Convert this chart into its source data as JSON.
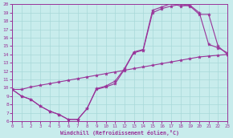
{
  "xlabel": "Windchill (Refroidissement éolien,°C)",
  "xlim": [
    0,
    23
  ],
  "ylim": [
    6,
    20
  ],
  "xticks": [
    0,
    1,
    2,
    3,
    4,
    5,
    6,
    7,
    8,
    9,
    10,
    11,
    12,
    13,
    14,
    15,
    16,
    17,
    18,
    19,
    20,
    21,
    22,
    23
  ],
  "yticks": [
    6,
    7,
    8,
    9,
    10,
    11,
    12,
    13,
    14,
    15,
    16,
    17,
    18,
    19,
    20
  ],
  "bg_color": "#c8ecec",
  "grid_color": "#a8d8d8",
  "line_color": "#993399",
  "curve1_x": [
    0,
    1,
    2,
    3,
    4,
    5,
    6,
    7,
    8,
    9,
    10,
    11,
    12,
    13,
    14,
    15,
    16,
    17,
    18,
    19,
    20,
    21,
    22,
    23
  ],
  "curve1_y": [
    9.8,
    9.0,
    8.6,
    7.8,
    7.2,
    6.8,
    6.2,
    6.2,
    7.5,
    9.9,
    10.2,
    10.8,
    12.3,
    14.3,
    14.6,
    19.3,
    19.7,
    20.1,
    19.8,
    19.9,
    19.0,
    15.2,
    14.8,
    14.2
  ],
  "curve2_x": [
    0,
    1,
    2,
    3,
    4,
    5,
    6,
    7,
    8,
    9,
    10,
    11,
    12,
    13,
    14,
    15,
    16,
    17,
    18,
    19,
    20,
    21,
    22,
    23
  ],
  "curve2_y": [
    9.8,
    9.0,
    8.6,
    7.8,
    7.2,
    6.8,
    6.2,
    6.2,
    7.5,
    9.8,
    10.1,
    10.5,
    12.2,
    14.2,
    14.5,
    19.0,
    19.5,
    19.8,
    20.0,
    19.8,
    18.8,
    18.8,
    15.0,
    14.0
  ],
  "curve3_x": [
    0,
    1,
    2,
    3,
    4,
    5,
    6,
    7,
    8,
    9,
    10,
    11,
    12,
    13,
    14,
    15,
    16,
    17,
    18,
    19,
    20,
    21,
    22,
    23
  ],
  "curve3_y": [
    9.8,
    9.8,
    10.1,
    10.3,
    10.5,
    10.7,
    10.9,
    11.1,
    11.3,
    11.5,
    11.7,
    11.9,
    12.1,
    12.3,
    12.5,
    12.7,
    12.9,
    13.1,
    13.3,
    13.5,
    13.7,
    13.8,
    13.9,
    14.0
  ]
}
